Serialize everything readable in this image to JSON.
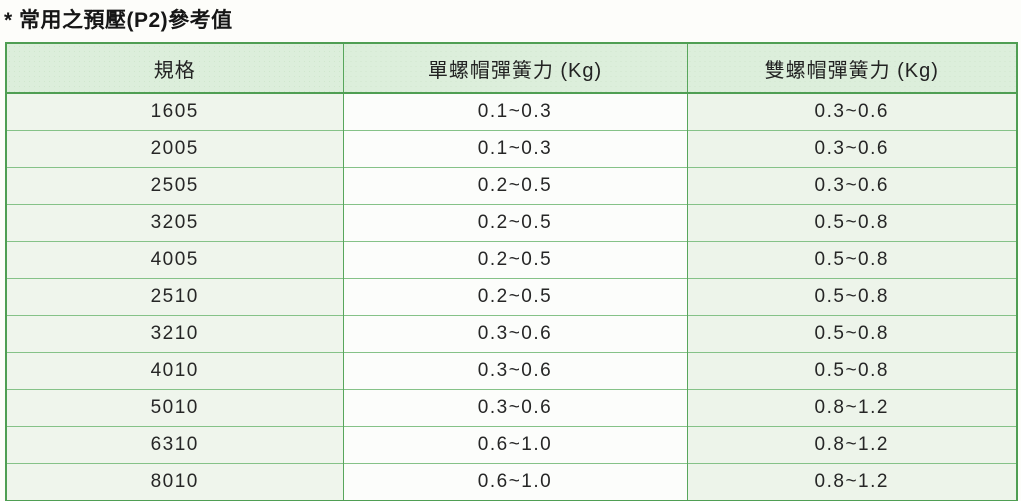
{
  "title": "* 常用之預壓(P2)參考值",
  "table": {
    "headers": [
      "規格",
      "單螺帽彈簧力 (Kg)",
      "雙螺帽彈簧力 (Kg)"
    ],
    "rows": [
      [
        "1605",
        "0.1~0.3",
        "0.3~0.6"
      ],
      [
        "2005",
        "0.1~0.3",
        "0.3~0.6"
      ],
      [
        "2505",
        "0.2~0.5",
        "0.3~0.6"
      ],
      [
        "3205",
        "0.2~0.5",
        "0.5~0.8"
      ],
      [
        "4005",
        "0.2~0.5",
        "0.5~0.8"
      ],
      [
        "2510",
        "0.2~0.5",
        "0.5~0.8"
      ],
      [
        "3210",
        "0.3~0.6",
        "0.5~0.8"
      ],
      [
        "4010",
        "0.3~0.6",
        "0.5~0.8"
      ],
      [
        "5010",
        "0.3~0.6",
        "0.8~1.2"
      ],
      [
        "6310",
        "0.6~1.0",
        "0.8~1.2"
      ],
      [
        "8010",
        "0.6~1.0",
        "0.8~1.2"
      ]
    ]
  },
  "colors": {
    "table_border_green": "#4f9e53",
    "row_line_green": "#85c288",
    "header_bg_green": "#dceedb",
    "tinted_cell_green": "#eff5ec",
    "text": "#262626"
  },
  "chart_data": {
    "type": "table",
    "title": "* 常用之預壓(P2)參考值",
    "columns": [
      "規格",
      "單螺帽彈簧力 (Kg)",
      "雙螺帽彈簧力 (Kg)"
    ],
    "rows": [
      [
        "1605",
        "0.1~0.3",
        "0.3~0.6"
      ],
      [
        "2005",
        "0.1~0.3",
        "0.3~0.6"
      ],
      [
        "2505",
        "0.2~0.5",
        "0.3~0.6"
      ],
      [
        "3205",
        "0.2~0.5",
        "0.5~0.8"
      ],
      [
        "4005",
        "0.2~0.5",
        "0.5~0.8"
      ],
      [
        "2510",
        "0.2~0.5",
        "0.5~0.8"
      ],
      [
        "3210",
        "0.3~0.6",
        "0.5~0.8"
      ],
      [
        "4010",
        "0.3~0.6",
        "0.5~0.8"
      ],
      [
        "5010",
        "0.3~0.6",
        "0.8~1.2"
      ],
      [
        "6310",
        "0.6~1.0",
        "0.8~1.2"
      ],
      [
        "8010",
        "0.6~1.0",
        "0.8~1.2"
      ]
    ]
  }
}
